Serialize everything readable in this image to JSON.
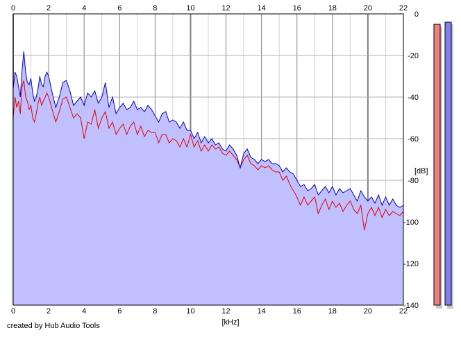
{
  "chart_data": {
    "type": "area",
    "xlabel": "[kHz]",
    "ylabel": "[dB]",
    "xlim": [
      0,
      22
    ],
    "ylim": [
      -140,
      0
    ],
    "x_ticks": [
      0,
      2,
      4,
      6,
      8,
      10,
      12,
      14,
      16,
      18,
      20,
      22
    ],
    "y_ticks": [
      0,
      -20,
      -40,
      -60,
      -80,
      -100,
      -120,
      -140
    ],
    "x_tick_labels": [
      "0",
      "2",
      "4",
      "6",
      "8",
      "10",
      "12",
      "14",
      "16",
      "18",
      "20",
      "22"
    ],
    "y_tick_labels": [
      "0",
      "-20",
      "-40",
      "-60",
      "-80",
      "-100",
      "-120",
      "-140"
    ],
    "grid": true,
    "area_fill_color": "#c0c0ff",
    "series": [
      {
        "color": "#0000c8",
        "points": [
          [
            0,
            -36
          ],
          [
            0.1,
            -28
          ],
          [
            0.2,
            -30
          ],
          [
            0.3,
            -35
          ],
          [
            0.4,
            -40
          ],
          [
            0.5,
            -27
          ],
          [
            0.6,
            -18
          ],
          [
            0.7,
            -28
          ],
          [
            0.8,
            -33
          ],
          [
            0.9,
            -34
          ],
          [
            1.0,
            -31
          ],
          [
            1.1,
            -38
          ],
          [
            1.2,
            -42
          ],
          [
            1.3,
            -40
          ],
          [
            1.4,
            -36
          ],
          [
            1.5,
            -30
          ],
          [
            1.6,
            -34
          ],
          [
            1.7,
            -35
          ],
          [
            1.8,
            -30
          ],
          [
            1.9,
            -28
          ],
          [
            2.0,
            -30
          ],
          [
            2.2,
            -38
          ],
          [
            2.4,
            -45
          ],
          [
            2.6,
            -40
          ],
          [
            2.8,
            -33
          ],
          [
            3.0,
            -32
          ],
          [
            3.2,
            -37
          ],
          [
            3.4,
            -44
          ],
          [
            3.6,
            -42
          ],
          [
            3.8,
            -40
          ],
          [
            4.0,
            -44
          ],
          [
            4.2,
            -38
          ],
          [
            4.4,
            -40
          ],
          [
            4.6,
            -37
          ],
          [
            4.8,
            -43
          ],
          [
            5.0,
            -40
          ],
          [
            5.2,
            -33
          ],
          [
            5.4,
            -45
          ],
          [
            5.6,
            -40
          ],
          [
            5.8,
            -48
          ],
          [
            6.0,
            -45
          ],
          [
            6.2,
            -43
          ],
          [
            6.4,
            -46
          ],
          [
            6.6,
            -45
          ],
          [
            6.8,
            -42
          ],
          [
            7.0,
            -46
          ],
          [
            7.2,
            -45
          ],
          [
            7.4,
            -47
          ],
          [
            7.6,
            -44
          ],
          [
            7.8,
            -46
          ],
          [
            8.0,
            -49
          ],
          [
            8.2,
            -52
          ],
          [
            8.4,
            -48
          ],
          [
            8.6,
            -47
          ],
          [
            8.8,
            -52
          ],
          [
            9.0,
            -51
          ],
          [
            9.2,
            -52
          ],
          [
            9.4,
            -55
          ],
          [
            9.6,
            -52
          ],
          [
            9.8,
            -56
          ],
          [
            10.0,
            -56
          ],
          [
            10.2,
            -60
          ],
          [
            10.4,
            -57
          ],
          [
            10.6,
            -62
          ],
          [
            10.8,
            -59
          ],
          [
            11.0,
            -62
          ],
          [
            11.2,
            -60
          ],
          [
            11.4,
            -63
          ],
          [
            11.6,
            -62
          ],
          [
            11.8,
            -65
          ],
          [
            12.0,
            -66
          ],
          [
            12.2,
            -63
          ],
          [
            12.4,
            -65
          ],
          [
            12.6,
            -68
          ],
          [
            12.8,
            -74
          ],
          [
            13.0,
            -67
          ],
          [
            13.2,
            -65
          ],
          [
            13.4,
            -69
          ],
          [
            13.6,
            -70
          ],
          [
            13.8,
            -72
          ],
          [
            14.0,
            -70
          ],
          [
            14.2,
            -71
          ],
          [
            14.4,
            -70
          ],
          [
            14.6,
            -72
          ],
          [
            14.8,
            -72
          ],
          [
            15.0,
            -73
          ],
          [
            15.2,
            -76
          ],
          [
            15.4,
            -74
          ],
          [
            15.6,
            -76
          ],
          [
            15.8,
            -77
          ],
          [
            16.0,
            -80
          ],
          [
            16.2,
            -83
          ],
          [
            16.4,
            -82
          ],
          [
            16.6,
            -85
          ],
          [
            16.8,
            -84
          ],
          [
            17.0,
            -82
          ],
          [
            17.2,
            -87
          ],
          [
            17.4,
            -85
          ],
          [
            17.6,
            -83
          ],
          [
            17.8,
            -86
          ],
          [
            18.0,
            -83
          ],
          [
            18.2,
            -87
          ],
          [
            18.4,
            -84
          ],
          [
            18.6,
            -86
          ],
          [
            18.8,
            -85
          ],
          [
            19.0,
            -84
          ],
          [
            19.2,
            -87
          ],
          [
            19.4,
            -90
          ],
          [
            19.6,
            -85
          ],
          [
            19.8,
            -88
          ],
          [
            20.0,
            -90
          ],
          [
            20.2,
            -88
          ],
          [
            20.4,
            -91
          ],
          [
            20.6,
            -87
          ],
          [
            20.8,
            -92
          ],
          [
            21.0,
            -88
          ],
          [
            21.2,
            -92
          ],
          [
            21.4,
            -89
          ],
          [
            21.6,
            -92
          ],
          [
            21.8,
            -93
          ],
          [
            22.0,
            -92
          ]
        ]
      },
      {
        "color": "#e60000",
        "points": [
          [
            0,
            -50
          ],
          [
            0.1,
            -40
          ],
          [
            0.2,
            -45
          ],
          [
            0.3,
            -42
          ],
          [
            0.4,
            -48
          ],
          [
            0.5,
            -35
          ],
          [
            0.6,
            -32
          ],
          [
            0.7,
            -40
          ],
          [
            0.8,
            -42
          ],
          [
            0.9,
            -46
          ],
          [
            1.0,
            -44
          ],
          [
            1.1,
            -50
          ],
          [
            1.2,
            -52
          ],
          [
            1.3,
            -48
          ],
          [
            1.4,
            -43
          ],
          [
            1.5,
            -40
          ],
          [
            1.6,
            -44
          ],
          [
            1.7,
            -42
          ],
          [
            1.8,
            -40
          ],
          [
            1.9,
            -38
          ],
          [
            2.0,
            -40
          ],
          [
            2.2,
            -46
          ],
          [
            2.4,
            -52
          ],
          [
            2.6,
            -47
          ],
          [
            2.8,
            -41
          ],
          [
            3.0,
            -40
          ],
          [
            3.2,
            -45
          ],
          [
            3.4,
            -50
          ],
          [
            3.6,
            -48
          ],
          [
            3.8,
            -50
          ],
          [
            4.0,
            -60
          ],
          [
            4.2,
            -52
          ],
          [
            4.4,
            -53
          ],
          [
            4.6,
            -46
          ],
          [
            4.8,
            -55
          ],
          [
            5.0,
            -50
          ],
          [
            5.2,
            -47
          ],
          [
            5.4,
            -55
          ],
          [
            5.6,
            -52
          ],
          [
            5.8,
            -58
          ],
          [
            6.0,
            -55
          ],
          [
            6.2,
            -53
          ],
          [
            6.4,
            -58
          ],
          [
            6.6,
            -54
          ],
          [
            6.8,
            -52
          ],
          [
            7.0,
            -58
          ],
          [
            7.2,
            -54
          ],
          [
            7.4,
            -59
          ],
          [
            7.6,
            -56
          ],
          [
            7.8,
            -57
          ],
          [
            8.0,
            -57
          ],
          [
            8.2,
            -62
          ],
          [
            8.4,
            -58
          ],
          [
            8.6,
            -58
          ],
          [
            8.8,
            -62
          ],
          [
            9.0,
            -60
          ],
          [
            9.2,
            -61
          ],
          [
            9.4,
            -64
          ],
          [
            9.6,
            -60
          ],
          [
            9.8,
            -64
          ],
          [
            10.0,
            -58
          ],
          [
            10.2,
            -64
          ],
          [
            10.4,
            -61
          ],
          [
            10.6,
            -66
          ],
          [
            10.8,
            -63
          ],
          [
            11.0,
            -66
          ],
          [
            11.2,
            -63
          ],
          [
            11.4,
            -65
          ],
          [
            11.6,
            -64
          ],
          [
            11.8,
            -67
          ],
          [
            12.0,
            -68
          ],
          [
            12.2,
            -66
          ],
          [
            12.4,
            -68
          ],
          [
            12.6,
            -70
          ],
          [
            12.8,
            -74
          ],
          [
            13.0,
            -70
          ],
          [
            13.2,
            -68
          ],
          [
            13.4,
            -72
          ],
          [
            13.6,
            -73
          ],
          [
            13.8,
            -75
          ],
          [
            14.0,
            -73
          ],
          [
            14.2,
            -74
          ],
          [
            14.4,
            -73
          ],
          [
            14.6,
            -75
          ],
          [
            14.8,
            -76
          ],
          [
            15.0,
            -76
          ],
          [
            15.2,
            -80
          ],
          [
            15.4,
            -78
          ],
          [
            15.6,
            -82
          ],
          [
            15.8,
            -85
          ],
          [
            16.0,
            -88
          ],
          [
            16.2,
            -92
          ],
          [
            16.4,
            -88
          ],
          [
            16.6,
            -92
          ],
          [
            16.8,
            -90
          ],
          [
            17.0,
            -88
          ],
          [
            17.2,
            -96
          ],
          [
            17.4,
            -92
          ],
          [
            17.6,
            -89
          ],
          [
            17.8,
            -94
          ],
          [
            18.0,
            -90
          ],
          [
            18.2,
            -93
          ],
          [
            18.4,
            -91
          ],
          [
            18.6,
            -95
          ],
          [
            18.8,
            -92
          ],
          [
            19.0,
            -90
          ],
          [
            19.2,
            -94
          ],
          [
            19.4,
            -96
          ],
          [
            19.6,
            -92
          ],
          [
            19.8,
            -104
          ],
          [
            20.0,
            -96
          ],
          [
            20.2,
            -93
          ],
          [
            20.4,
            -97
          ],
          [
            20.6,
            -93
          ],
          [
            20.8,
            -98
          ],
          [
            21.0,
            -94
          ],
          [
            21.2,
            -97
          ],
          [
            21.4,
            -95
          ],
          [
            21.6,
            -96
          ],
          [
            21.8,
            -97
          ],
          [
            22.0,
            -95
          ]
        ]
      }
    ],
    "level_meters": [
      {
        "color": "#f08080",
        "level_db": -5
      },
      {
        "color": "#8080f0",
        "level_db": -4
      }
    ]
  },
  "credit": "created by Hub Audio Tools"
}
